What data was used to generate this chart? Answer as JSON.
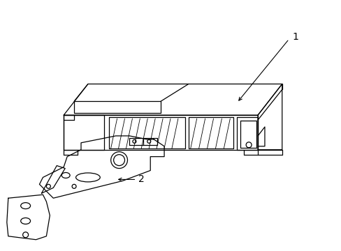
{
  "background_color": "#ffffff",
  "line_color": "#000000",
  "label_1": "1",
  "label_2": "2",
  "label_fontsize": 10,
  "fig_width": 4.89,
  "fig_height": 3.6,
  "dpi": 100
}
